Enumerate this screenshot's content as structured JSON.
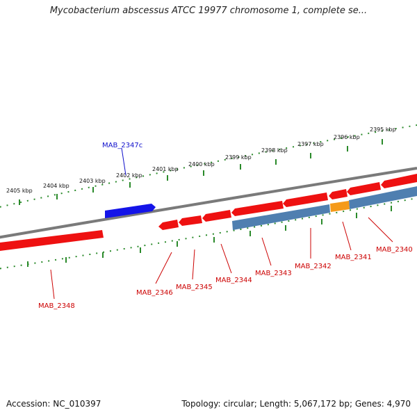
{
  "header": {
    "title": "Mycobacterium abscessus ATCC 19977 chromosome 1, complete se..."
  },
  "footer": {
    "accession": "Accession: NC_010397",
    "summary": "Topology: circular; Length: 5,067,172 bp; Genes: 4,970"
  },
  "colors": {
    "backbone": "#7a7a7a",
    "forward_gene": "#ee1111",
    "reverse_gene_highlight": "#1414e8",
    "reverse_gene": "#4f7fb0",
    "special_gene": "#f59a1a",
    "tick": "#2a8a2a",
    "label_red": "#cc0000",
    "label_blue": "#1111cc"
  },
  "kbp_labels": [
    "2395 kbp",
    "2396 kbp",
    "2397 kbp",
    "2398 kbp",
    "2399 kbp",
    "2400 kbp",
    "2401 kbp",
    "2402 kbp",
    "2403 kbp",
    "2404 kbp",
    "2405 kbp"
  ],
  "gene_labels": [
    {
      "id": "MAB_2347c",
      "color": "blue"
    },
    {
      "id": "MAB_2348",
      "color": "red"
    },
    {
      "id": "MAB_2346",
      "color": "red"
    },
    {
      "id": "MAB_2345",
      "color": "red"
    },
    {
      "id": "MAB_2344",
      "color": "red"
    },
    {
      "id": "MAB_2343",
      "color": "red"
    },
    {
      "id": "MAB_2342",
      "color": "red"
    },
    {
      "id": "MAB_2341",
      "color": "red"
    },
    {
      "id": "MAB_2340",
      "color": "red"
    }
  ]
}
